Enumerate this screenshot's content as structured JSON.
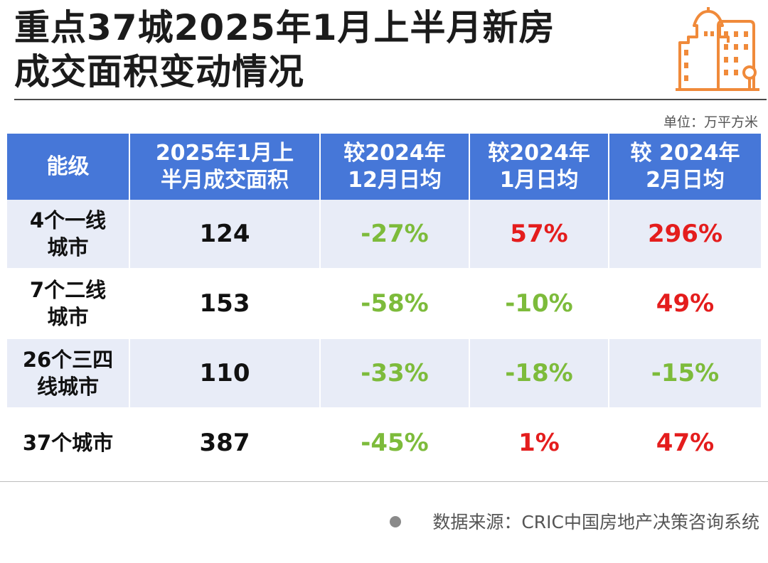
{
  "title": {
    "line1": "重点37城2025年1月上半月新房",
    "line2": "成交面积变动情况"
  },
  "logo": {
    "icon": "city-buildings-icon",
    "color": "#f08a3a"
  },
  "unit_label": "单位：万平方米",
  "table": {
    "headers": [
      {
        "line1": "能级",
        "line2": ""
      },
      {
        "line1": "2025年1月上",
        "line2": "半月成交面积"
      },
      {
        "line1": "较2024年",
        "line2": "12月日均"
      },
      {
        "line1": "较2024年",
        "line2": "1月日均"
      },
      {
        "line1": "较 2024年",
        "line2": "2月日均"
      }
    ],
    "rows": [
      {
        "level_line1": "4个一线",
        "level_line2": "城市",
        "area": "124",
        "vs_dec": "-27%",
        "vs_jan": "57%",
        "vs_feb": "296%"
      },
      {
        "level_line1": "7个二线",
        "level_line2": "城市",
        "area": "153",
        "vs_dec": "-58%",
        "vs_jan": "-10%",
        "vs_feb": "49%"
      },
      {
        "level_line1": "26个三四",
        "level_line2": "线城市",
        "area": "110",
        "vs_dec": "-33%",
        "vs_jan": "-18%",
        "vs_feb": "-15%"
      },
      {
        "level_line1": "37个城市",
        "level_line2": "",
        "area": "387",
        "vs_dec": "-45%",
        "vs_jan": "1%",
        "vs_feb": "47%"
      }
    ]
  },
  "colors": {
    "header_bg": "#4677d8",
    "band_bg": "#e8ecf7",
    "negative": "#7dbb3b",
    "positive": "#e41d1d"
  },
  "source": "数据来源：CRIC中国房地产决策咨询系统"
}
